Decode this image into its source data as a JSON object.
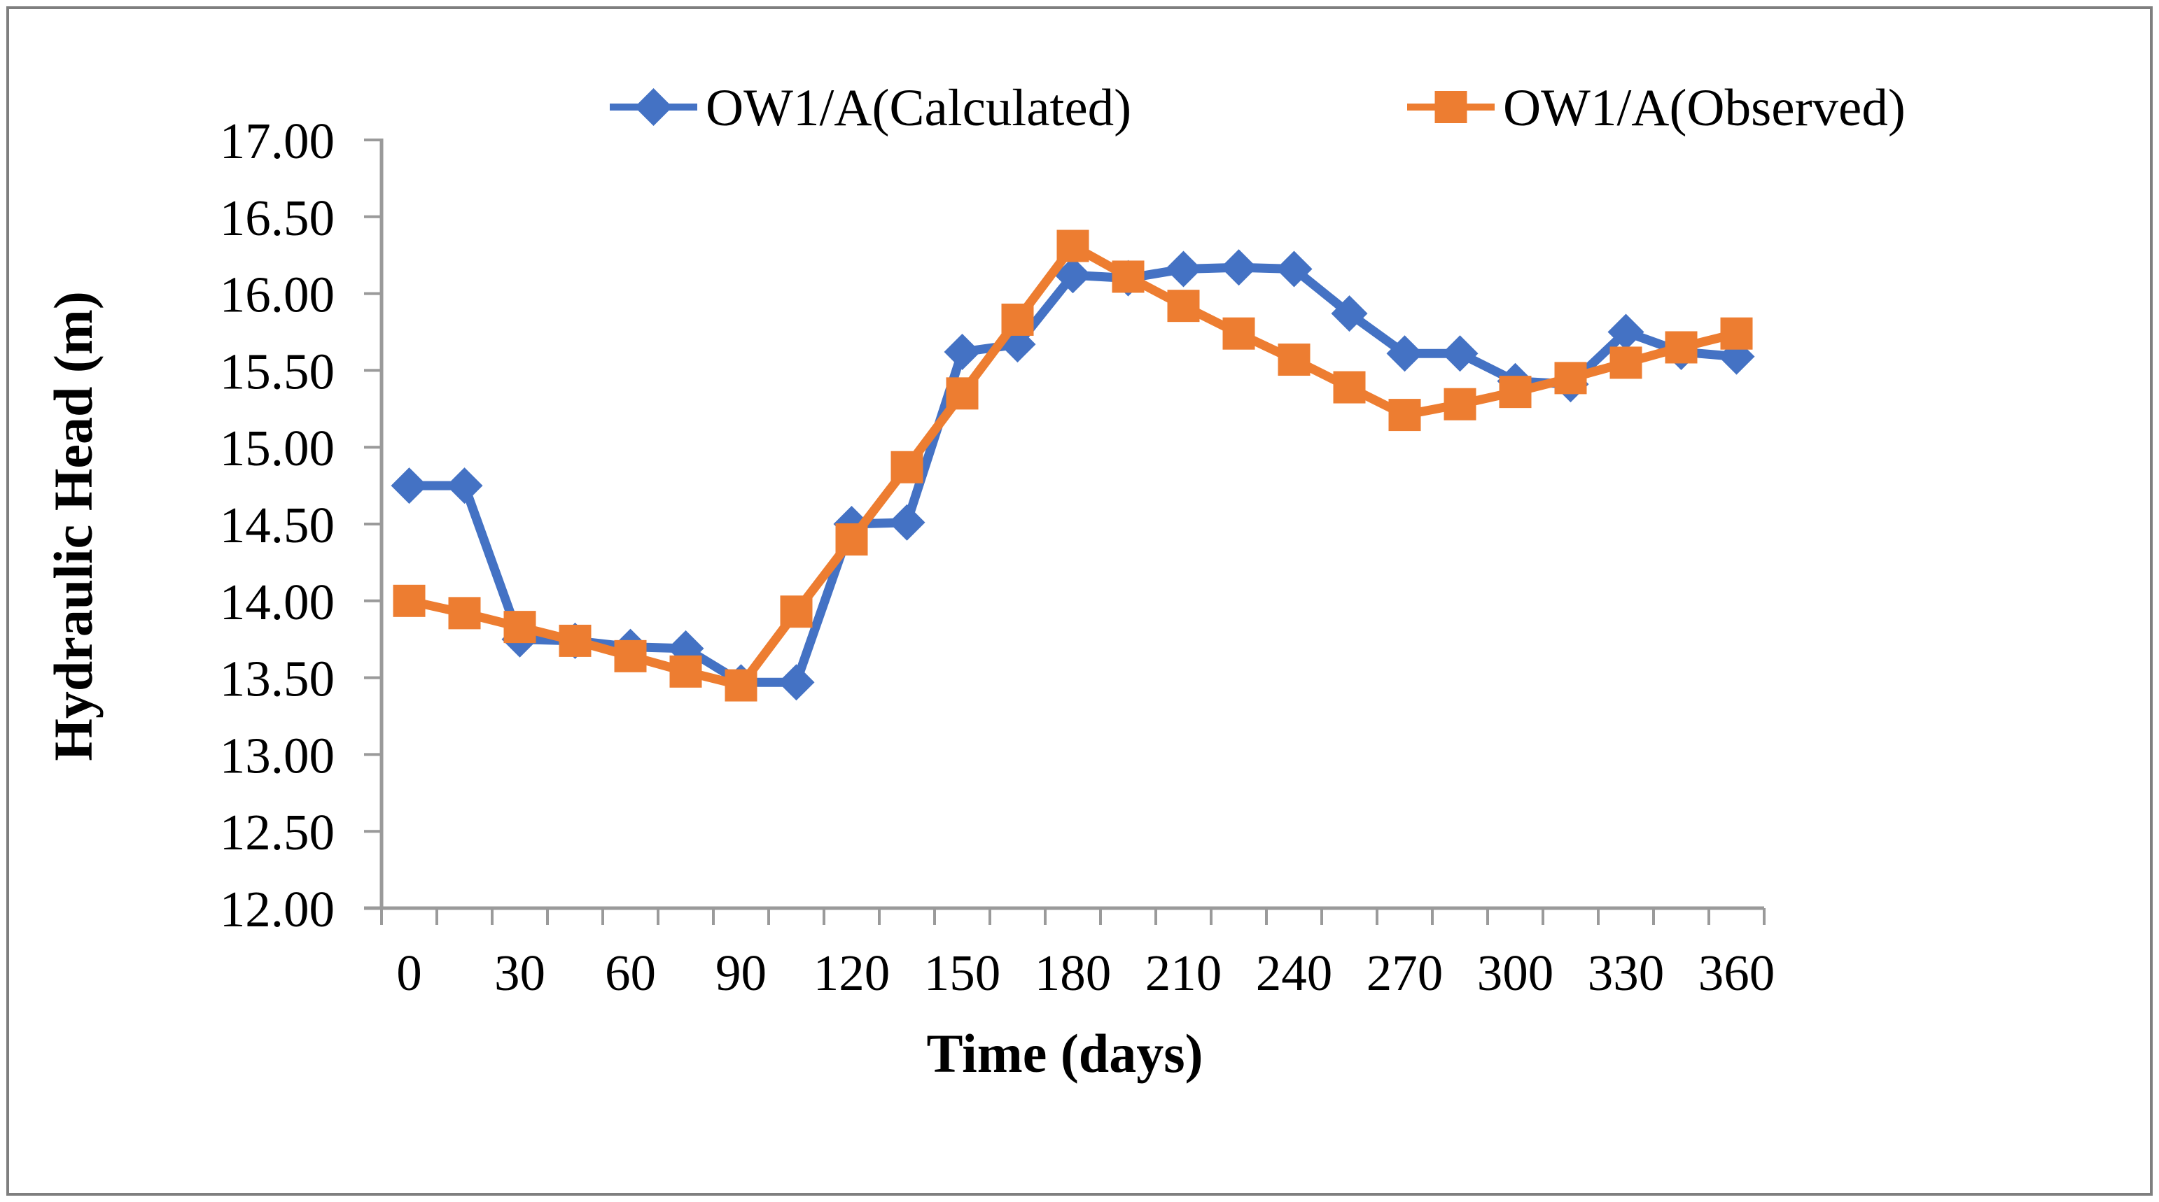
{
  "figure": {
    "background": "#FFFFFF",
    "border_color": "#7F7F7F"
  },
  "chart_data": {
    "type": "line",
    "title": "",
    "xlabel": "Time (days)",
    "ylabel": "Hydraulic Head (m)",
    "ylim": [
      12.0,
      17.0
    ],
    "y_tick_step": 0.5,
    "y_tick_labels": [
      "17.00",
      "16.50",
      "16.00",
      "15.50",
      "15.00",
      "14.50",
      "14.00",
      "13.50",
      "13.00",
      "12.50",
      "12.00"
    ],
    "x": [
      0,
      15,
      30,
      45,
      60,
      75,
      90,
      105,
      120,
      135,
      150,
      165,
      180,
      195,
      210,
      225,
      240,
      255,
      270,
      285,
      300,
      315,
      330,
      345,
      360
    ],
    "x_label_every_days": 30,
    "x_minor_tick_days": 15,
    "grid": false,
    "legend_position": "top-center",
    "axis_color": "#9A9A9A",
    "text_color": "#000000",
    "series": [
      {
        "name": "OW1/A(Calculated)",
        "color": "#4472C4",
        "marker": "diamond",
        "values": [
          14.75,
          14.75,
          13.75,
          13.74,
          13.7,
          13.69,
          13.47,
          13.47,
          14.5,
          14.51,
          15.62,
          15.67,
          16.12,
          16.1,
          16.16,
          16.17,
          16.16,
          15.87,
          15.61,
          15.61,
          15.43,
          15.41,
          15.75,
          15.62,
          15.59
        ]
      },
      {
        "name": "OW1/A(Observed)",
        "color": "#ED7D31",
        "marker": "square",
        "values": [
          14.0,
          13.92,
          13.83,
          13.74,
          13.64,
          13.54,
          13.45,
          13.93,
          14.4,
          14.87,
          15.35,
          15.83,
          16.31,
          16.11,
          15.92,
          15.74,
          15.57,
          15.39,
          15.21,
          15.28,
          15.36,
          15.45,
          15.55,
          15.65,
          15.74
        ]
      }
    ]
  }
}
